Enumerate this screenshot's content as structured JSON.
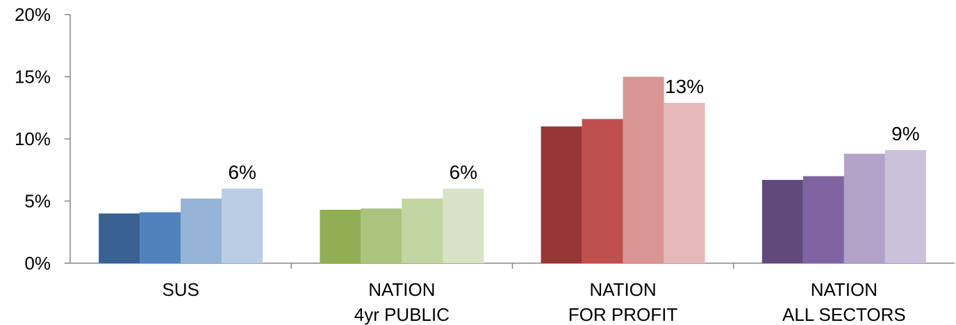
{
  "chart_data": {
    "type": "bar",
    "title": "",
    "xlabel": "",
    "ylabel": "",
    "ylim": [
      0,
      20
    ],
    "yticks": [
      0,
      5,
      10,
      15,
      20
    ],
    "ytick_labels": [
      "0%",
      "5%",
      "10%",
      "15%",
      "20%"
    ],
    "grid": false,
    "legend": "none",
    "groups": [
      {
        "label_lines": [
          "SUS"
        ],
        "values": [
          4.0,
          4.1,
          5.2,
          6.0
        ],
        "colors": [
          "#386192",
          "#4f82bd",
          "#95b3d7",
          "#b9cde5"
        ],
        "data_label": "6%"
      },
      {
        "label_lines": [
          "NATION",
          "4yr PUBLIC"
        ],
        "values": [
          4.3,
          4.4,
          5.2,
          6.0
        ],
        "colors": [
          "#91ae54",
          "#aac47d",
          "#c3d5a2",
          "#d8e3c6"
        ],
        "data_label": "6%"
      },
      {
        "label_lines": [
          "NATION",
          "FOR PROFIT"
        ],
        "values": [
          11.0,
          11.6,
          15.0,
          12.9
        ],
        "colors": [
          "#953736",
          "#c0504d",
          "#d99694",
          "#e6b9b8"
        ],
        "data_label": "13%"
      },
      {
        "label_lines": [
          "NATION",
          "ALL SECTORS"
        ],
        "values": [
          6.7,
          7.0,
          8.8,
          9.1
        ],
        "colors": [
          "#604a7b",
          "#8064a2",
          "#b2a2c7",
          "#ccc1da"
        ],
        "data_label": "9%"
      }
    ]
  }
}
